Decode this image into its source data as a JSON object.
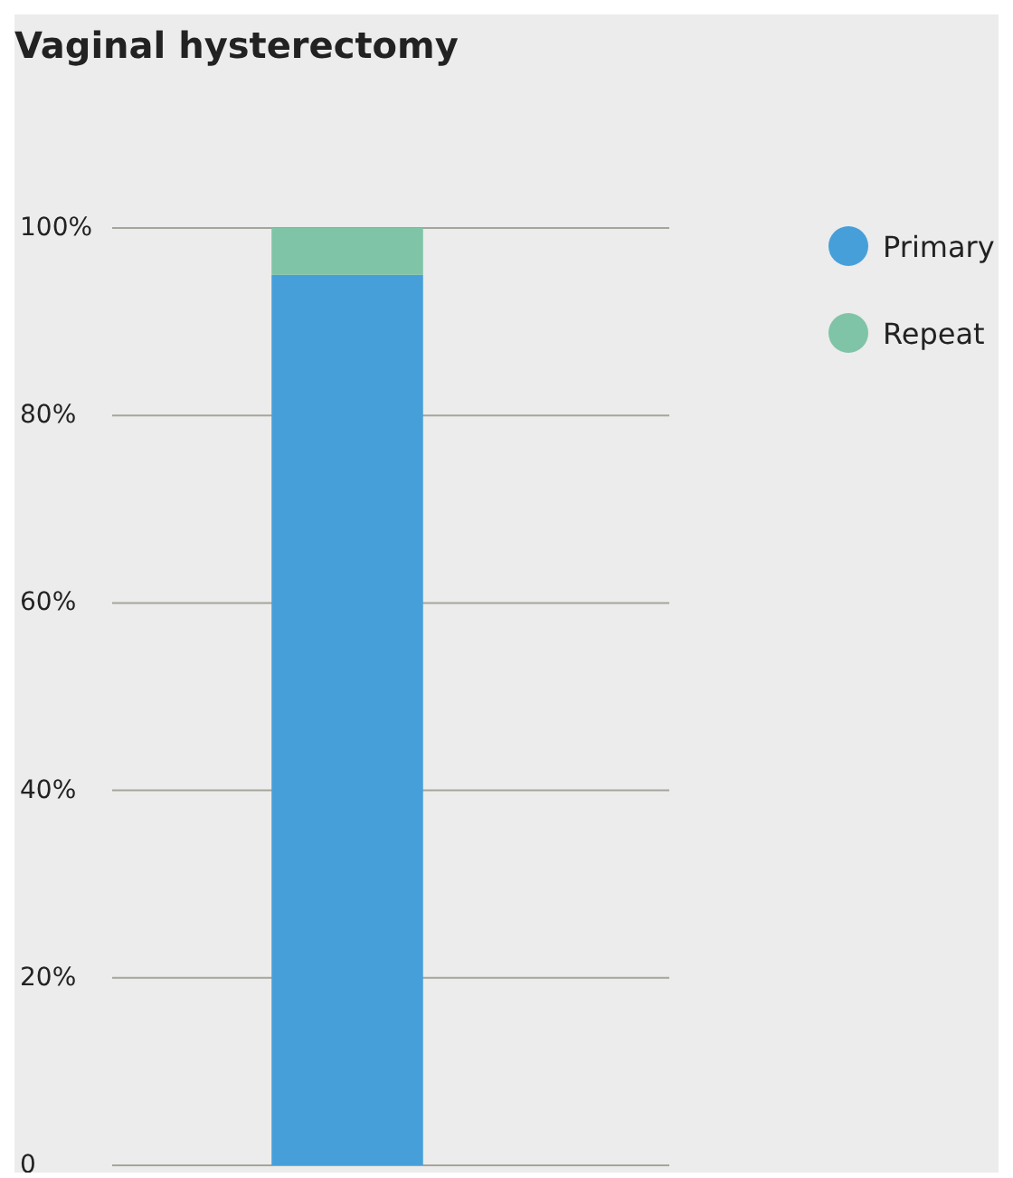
{
  "chart_data": {
    "type": "bar",
    "title": "Vaginal hysterectomy",
    "categories": [
      null
    ],
    "stacked": true,
    "series": [
      {
        "name": "Primary",
        "color": "#479fd9",
        "values": [
          95
        ]
      },
      {
        "name": "Repeat",
        "color": "#7fc4a6",
        "values": [
          5
        ]
      }
    ],
    "ylim": [
      0,
      100
    ],
    "yticks": [
      {
        "value": 0,
        "label": "0"
      },
      {
        "value": 20,
        "label": "20%"
      },
      {
        "value": 40,
        "label": "40%"
      },
      {
        "value": 60,
        "label": "60%"
      },
      {
        "value": 80,
        "label": "80%"
      },
      {
        "value": 100,
        "label": "100%"
      }
    ],
    "grid": "y",
    "legend": "top right",
    "tick_labels": "y"
  }
}
